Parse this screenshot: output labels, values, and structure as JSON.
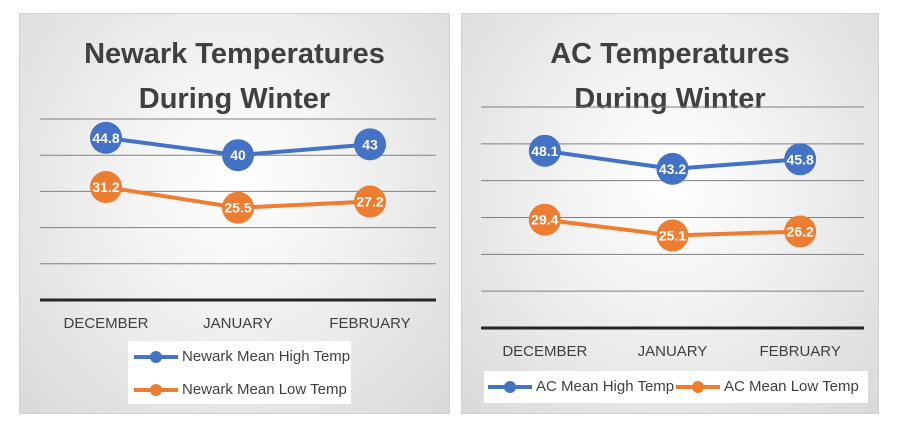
{
  "charts": {
    "newark": {
      "title_line1": "Newark Temperatures",
      "title_line2": "During Winter",
      "legend": [
        "Newark Mean High Temp",
        "Newark Mean Low Temp"
      ]
    },
    "ac": {
      "title_line1": "AC Temperatures",
      "title_line2": "During Winter",
      "legend": [
        "AC Mean High Temp",
        "AC Mean Low Temp"
      ]
    }
  },
  "colors": {
    "high": "#4472c4",
    "low": "#ed7d31",
    "gridline": "#808080",
    "axis": "#262626",
    "text": "#404040"
  },
  "chart_data": [
    {
      "type": "line",
      "title": "Newark Temperatures During Winter",
      "categories": [
        "DECEMBER",
        "JANUARY",
        "FEBRUARY"
      ],
      "series": [
        {
          "name": "Newark Mean High Temp",
          "values": [
            44.8,
            40,
            43
          ]
        },
        {
          "name": "Newark Mean Low Temp",
          "values": [
            31.2,
            25.5,
            27.2
          ]
        }
      ],
      "ylim": [
        0,
        50
      ],
      "grid": true,
      "legend_position": "bottom",
      "data_labels": true
    },
    {
      "type": "line",
      "title": "AC Temperatures During Winter",
      "categories": [
        "DECEMBER",
        "JANUARY",
        "FEBRUARY"
      ],
      "series": [
        {
          "name": "AC Mean High Temp",
          "values": [
            48.1,
            43.2,
            45.8
          ]
        },
        {
          "name": "AC Mean Low Temp",
          "values": [
            29.4,
            25.1,
            26.2
          ]
        }
      ],
      "ylim": [
        0,
        60
      ],
      "grid": true,
      "legend_position": "bottom",
      "data_labels": true
    }
  ]
}
